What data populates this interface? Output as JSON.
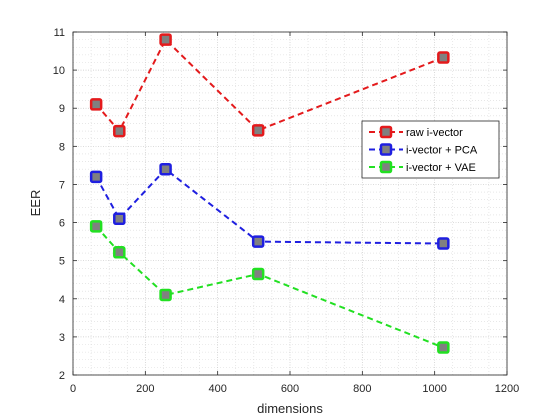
{
  "chart_data": {
    "type": "line",
    "xlabel": "dimensions",
    "ylabel": "EER",
    "xlim": [
      0,
      1200
    ],
    "ylim": [
      2,
      11
    ],
    "xticks": [
      0,
      200,
      400,
      600,
      800,
      1000,
      1200
    ],
    "yticks": [
      2,
      3,
      4,
      5,
      6,
      7,
      8,
      9,
      10,
      11
    ],
    "grid": true,
    "minor_grid": true,
    "legend_position": "top-right",
    "x": [
      64,
      128,
      256,
      512,
      1024
    ],
    "series": [
      {
        "name": "raw i-vector",
        "color": "#e41a1c",
        "values": [
          9.1,
          8.4,
          10.8,
          8.42,
          10.33
        ]
      },
      {
        "name": "i-vector + PCA",
        "color": "#1f1fe0",
        "values": [
          7.2,
          6.1,
          7.4,
          5.5,
          5.45
        ]
      },
      {
        "name": "i-vector + VAE",
        "color": "#22e022",
        "values": [
          5.9,
          5.22,
          4.1,
          4.65,
          2.72
        ]
      }
    ],
    "marker_fill": "#808080"
  }
}
